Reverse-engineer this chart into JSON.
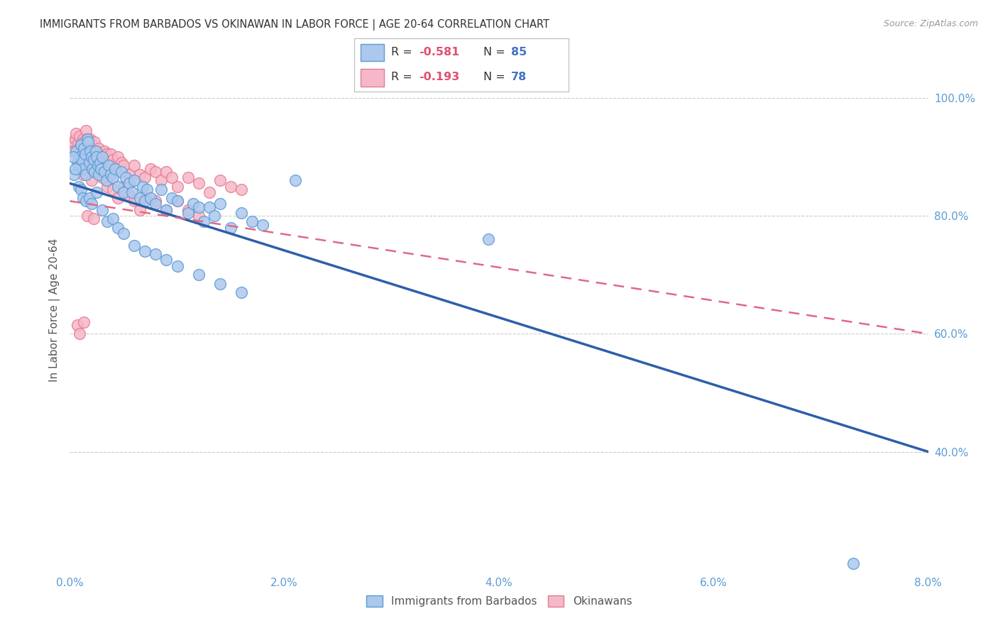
{
  "title": "IMMIGRANTS FROM BARBADOS VS OKINAWAN IN LABOR FORCE | AGE 20-64 CORRELATION CHART",
  "source": "Source: ZipAtlas.com",
  "ylabel": "In Labor Force | Age 20-64",
  "xticks": [
    0.0,
    2.0,
    4.0,
    6.0,
    8.0
  ],
  "yticks": [
    40.0,
    60.0,
    80.0,
    100.0
  ],
  "xlim": [
    0.0,
    8.0
  ],
  "ylim": [
    20.0,
    108.0
  ],
  "series1_label": "Immigrants from Barbados",
  "series1_color": "#adc8ed",
  "series1_edge_color": "#5b9bd5",
  "series1_R": "-0.581",
  "series1_N": "85",
  "series2_label": "Okinawans",
  "series2_color": "#f5b8c8",
  "series2_edge_color": "#e87a90",
  "series2_R": "-0.193",
  "series2_N": "78",
  "reg1_x0": 0.0,
  "reg1_y0": 85.5,
  "reg1_x1": 8.0,
  "reg1_y1": 40.0,
  "reg2_x0": 0.0,
  "reg2_y0": 82.5,
  "reg2_x1": 8.0,
  "reg2_y1": 60.0,
  "regression1_color": "#2e5eaa",
  "regression2_color": "#e06888",
  "legend_R_color": "#e05070",
  "legend_N_color": "#4472c4",
  "background_color": "#ffffff",
  "grid_color": "#cccccc",
  "title_color": "#333333",
  "axis_label_color": "#555555",
  "tick_label_color": "#5b9bd5",
  "series1_x": [
    0.04,
    0.06,
    0.07,
    0.08,
    0.09,
    0.1,
    0.11,
    0.12,
    0.13,
    0.14,
    0.15,
    0.16,
    0.17,
    0.18,
    0.19,
    0.2,
    0.21,
    0.22,
    0.23,
    0.24,
    0.25,
    0.26,
    0.27,
    0.28,
    0.29,
    0.3,
    0.32,
    0.34,
    0.36,
    0.38,
    0.4,
    0.42,
    0.45,
    0.48,
    0.5,
    0.52,
    0.55,
    0.58,
    0.6,
    0.65,
    0.68,
    0.7,
    0.72,
    0.75,
    0.8,
    0.85,
    0.9,
    0.95,
    1.0,
    1.1,
    1.15,
    1.2,
    1.25,
    1.3,
    1.35,
    1.4,
    1.5,
    1.6,
    1.7,
    1.8,
    0.03,
    0.05,
    0.08,
    0.1,
    0.12,
    0.15,
    0.18,
    0.2,
    0.25,
    0.3,
    0.35,
    0.4,
    0.45,
    0.5,
    0.6,
    0.7,
    0.8,
    0.9,
    1.0,
    1.2,
    1.4,
    1.6,
    2.1,
    3.9,
    7.3
  ],
  "series1_y": [
    87.0,
    91.0,
    89.0,
    88.5,
    90.0,
    92.0,
    89.5,
    88.0,
    91.5,
    90.5,
    87.0,
    93.0,
    92.5,
    89.0,
    91.0,
    90.0,
    88.0,
    89.5,
    87.5,
    91.0,
    90.0,
    88.5,
    87.0,
    89.0,
    88.0,
    90.0,
    87.5,
    86.0,
    88.5,
    87.0,
    86.5,
    88.0,
    85.0,
    87.5,
    84.0,
    86.5,
    85.5,
    84.0,
    86.0,
    83.0,
    85.0,
    82.5,
    84.5,
    83.0,
    82.0,
    84.5,
    81.0,
    83.0,
    82.5,
    80.5,
    82.0,
    81.5,
    79.0,
    81.5,
    80.0,
    82.0,
    78.0,
    80.5,
    79.0,
    78.5,
    90.0,
    88.0,
    85.0,
    84.5,
    83.0,
    82.5,
    83.0,
    82.0,
    84.0,
    81.0,
    79.0,
    79.5,
    78.0,
    77.0,
    75.0,
    74.0,
    73.5,
    72.5,
    71.5,
    70.0,
    68.5,
    67.0,
    86.0,
    76.0,
    21.0
  ],
  "series2_x": [
    0.03,
    0.04,
    0.05,
    0.06,
    0.07,
    0.08,
    0.09,
    0.1,
    0.11,
    0.12,
    0.13,
    0.14,
    0.15,
    0.16,
    0.17,
    0.18,
    0.19,
    0.2,
    0.21,
    0.22,
    0.23,
    0.24,
    0.25,
    0.26,
    0.27,
    0.28,
    0.3,
    0.32,
    0.34,
    0.36,
    0.38,
    0.4,
    0.42,
    0.45,
    0.48,
    0.5,
    0.55,
    0.6,
    0.65,
    0.7,
    0.75,
    0.8,
    0.85,
    0.9,
    0.95,
    1.0,
    1.1,
    1.2,
    1.3,
    1.4,
    1.5,
    1.6,
    0.08,
    0.1,
    0.12,
    0.15,
    0.18,
    0.2,
    0.25,
    0.3,
    0.35,
    0.4,
    0.45,
    0.5,
    0.55,
    0.6,
    0.65,
    0.7,
    0.8,
    0.9,
    1.0,
    1.1,
    1.2,
    0.07,
    0.09,
    0.13,
    0.16,
    0.22
  ],
  "series2_y": [
    92.5,
    91.0,
    93.0,
    94.0,
    92.0,
    91.5,
    93.5,
    92.0,
    91.0,
    93.0,
    92.5,
    91.0,
    94.5,
    93.0,
    92.0,
    91.5,
    93.0,
    92.0,
    91.5,
    90.0,
    92.5,
    91.0,
    90.5,
    89.0,
    91.5,
    90.0,
    89.0,
    91.0,
    90.5,
    89.0,
    90.5,
    89.5,
    88.0,
    90.0,
    89.0,
    88.5,
    87.0,
    88.5,
    87.0,
    86.5,
    88.0,
    87.5,
    86.0,
    87.5,
    86.5,
    85.0,
    86.5,
    85.5,
    84.0,
    86.0,
    85.0,
    84.5,
    89.0,
    88.5,
    87.0,
    88.5,
    87.5,
    86.0,
    87.5,
    86.5,
    85.0,
    84.5,
    83.0,
    85.0,
    83.5,
    82.5,
    81.0,
    83.0,
    82.5,
    81.0,
    82.5,
    81.0,
    80.0,
    61.5,
    60.0,
    62.0,
    80.0,
    79.5
  ]
}
